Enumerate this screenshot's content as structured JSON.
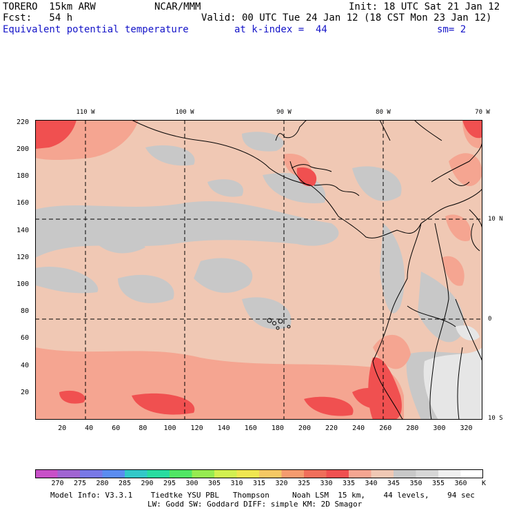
{
  "header": {
    "model": "TORERO  15km ARW",
    "center": "NCAR/MMM",
    "init": "Init: 18 UTC Sat 21 Jan 12",
    "fcst": "Fcst:   54 h",
    "valid": "Valid: 00 UTC Tue 24 Jan 12 (18 CST Mon 23 Jan 12)",
    "field": "Equivalent potential temperature",
    "level": "at k-index =  44",
    "smooth": "sm= 2"
  },
  "axes": {
    "x_ticks": [
      "20",
      "40",
      "60",
      "80",
      "100",
      "120",
      "140",
      "160",
      "180",
      "200",
      "220",
      "240",
      "260",
      "280",
      "300",
      "320"
    ],
    "y_ticks": [
      "20",
      "40",
      "60",
      "80",
      "100",
      "120",
      "140",
      "160",
      "180",
      "200",
      "220"
    ],
    "lon_labels": [
      "110 W",
      "100 W",
      "90 W",
      "80 W",
      "70 W"
    ],
    "lat_labels": [
      "10 N",
      "0",
      "10 S"
    ]
  },
  "colorbar": {
    "labels": [
      "270",
      "275",
      "280",
      "285",
      "290",
      "295",
      "300",
      "305",
      "310",
      "315",
      "320",
      "325",
      "330",
      "335",
      "340",
      "345",
      "350",
      "355",
      "360"
    ],
    "unit": "K",
    "colors": [
      "#c850c8",
      "#a064d2",
      "#7878e6",
      "#5a8cf0",
      "#32c8c8",
      "#28dca0",
      "#50e664",
      "#96eb50",
      "#d2f050",
      "#f0e650",
      "#f5c864",
      "#f59b6e",
      "#f06e5a",
      "#f05050",
      "#f5a591",
      "#f0c8b4",
      "#c8c8c8",
      "#d7d7d7",
      "#f0f0f0",
      "#ffffff"
    ]
  },
  "footer": {
    "line1": "Model Info: V3.3.1    Tiedtke YSU PBL   Thompson     Noah LSM  15 km,    44 levels,    94 sec",
    "line2": "LW: Godd SW: Goddard DIFF: simple KM: 2D Smagor"
  },
  "fill_colors": {
    "base": "#f0c8b4",
    "grey": "#c8c8c8",
    "light_grey": "#e6e6e6",
    "salmon": "#f5a591",
    "red": "#f05050"
  }
}
